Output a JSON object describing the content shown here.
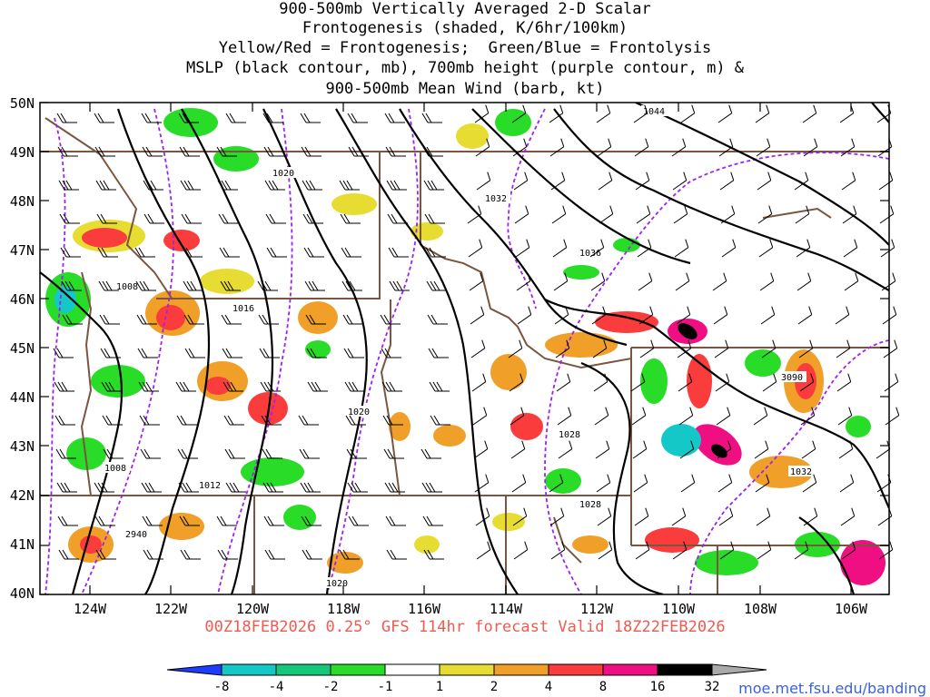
{
  "title_lines": [
    "900-500mb Vertically Averaged 2-D Scalar",
    "Frontogenesis (shaded, K/6hr/100km)",
    "Yellow/Red = Frontogenesis;  Green/Blue = Frontolysis",
    "MSLP (black contour, mb), 700mb height (purple contour, m) &",
    "900-500mb Mean Wind (barb, kt)"
  ],
  "subtitle": "00Z18FEB2026 0.25° GFS 114hr forecast Valid 18Z22FEB2026",
  "credit": "moe.met.fsu.edu/banding",
  "map": {
    "lat_labels": [
      "50N",
      "49N",
      "48N",
      "47N",
      "46N",
      "45N",
      "44N",
      "43N",
      "42N",
      "41N",
      "40N"
    ],
    "lon_labels": [
      "124W",
      "122W",
      "120W",
      "118W",
      "116W",
      "114W",
      "112W",
      "110W",
      "108W",
      "106W"
    ],
    "mslp_labels": [
      "1044",
      "1020",
      "1032",
      "1036",
      "1008",
      "1016",
      "1020",
      "1028",
      "1008",
      "1012",
      "1028",
      "1032",
      "1020"
    ],
    "height_labels": [
      "3090",
      "2940"
    ]
  },
  "colorbar": {
    "ticks": [
      "-8",
      "-4",
      "-2",
      "-1",
      "1",
      "2",
      "4",
      "8",
      "16",
      "32"
    ],
    "colors": [
      "#1e3cff",
      "#14c8c8",
      "#14c87a",
      "#28dc28",
      "#ffffff",
      "#e6dc32",
      "#f0a028",
      "#fa3c3c",
      "#f00f82",
      "#000000",
      "#aaaaaa"
    ]
  },
  "colors": {
    "mslp": "#000000",
    "height": "#a020f0",
    "borders": "#7a5640",
    "frontogenesis_weak": "#e6dc32",
    "frontogenesis_mod": "#f0a028",
    "frontogenesis_strong": "#fa3c3c",
    "frontolysis_weak": "#28dc28",
    "frontolysis_mod": "#14c87a"
  }
}
